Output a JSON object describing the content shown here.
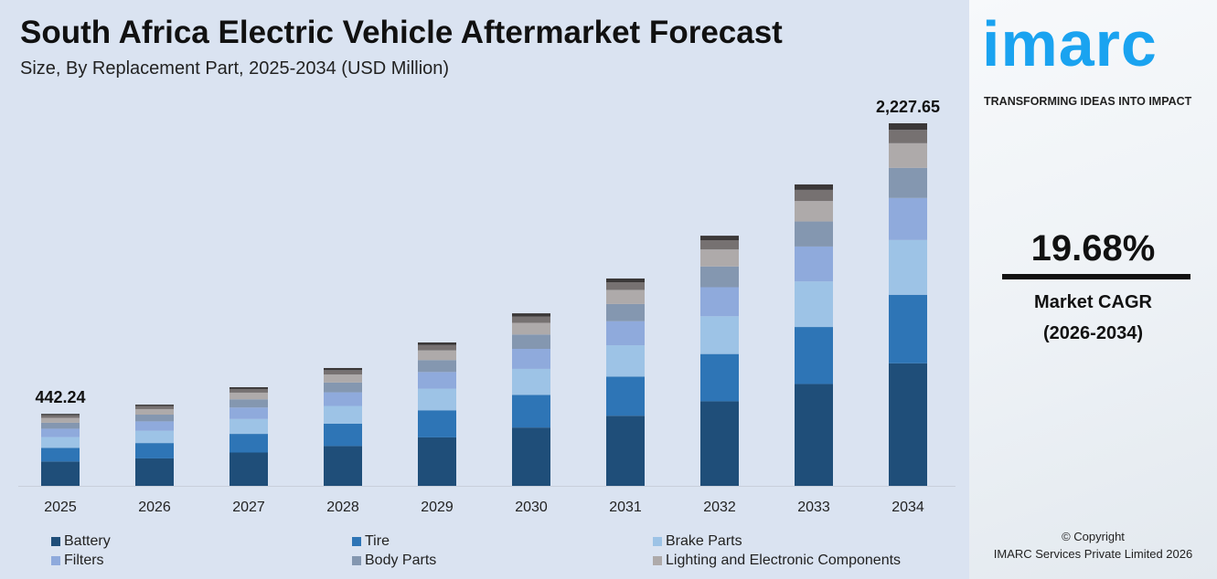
{
  "chart_data": {
    "type": "bar",
    "stacked": true,
    "title": "South Africa Electric Vehicle Aftermarket Forecast",
    "subtitle": "Size, By Replacement Part, 2025-2034 (USD Million)",
    "categories": [
      "2025",
      "2026",
      "2027",
      "2028",
      "2029",
      "2030",
      "2031",
      "2032",
      "2033",
      "2034"
    ],
    "totals": [
      442.24,
      499,
      606,
      724,
      881,
      1060,
      1274,
      1537,
      1852,
      2227.65
    ],
    "total_labels": {
      "0": "442.24",
      "9": "2,227.65"
    },
    "segment_shares": [
      0.338,
      0.189,
      0.151,
      0.116,
      0.083,
      0.068,
      0.037,
      0.018
    ],
    "series": [
      {
        "name": "Battery",
        "color": "#1f4e79"
      },
      {
        "name": "Tire",
        "color": "#2e75b6"
      },
      {
        "name": "Brake Parts",
        "color": "#9dc3e6"
      },
      {
        "name": "Filters",
        "color": "#8faadc"
      },
      {
        "name": "Body Parts",
        "color": "#8497b0"
      },
      {
        "name": "Lighting and Electronic Components",
        "color": "#aeaaaa"
      },
      {
        "color": "#767171"
      },
      {
        "color": "#3b3838"
      }
    ],
    "ylim": [
      0,
      2227.65
    ],
    "grid": false,
    "legend_placement": "bottom"
  },
  "sidebar": {
    "logo": "imarc",
    "tagline": "TRANSFORMING IDEAS INTO IMPACT",
    "cagr_value": "19.68%",
    "cagr_label": "Market CAGR",
    "cagr_period": "(2026-2034)",
    "copyright": "© Copyright",
    "company": "IMARC Services Private Limited 2026",
    "brand_color": "#1aa3f0"
  }
}
